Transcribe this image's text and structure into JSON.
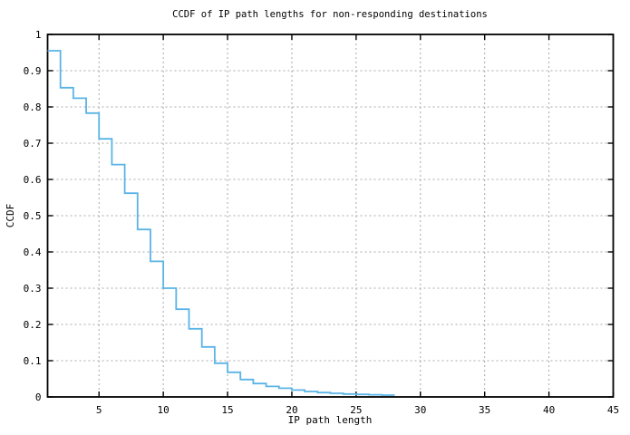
{
  "window": {
    "background": "#ffffff"
  },
  "colors": {
    "plot_border": "#000000",
    "grid": "#a8a8a8",
    "text": "#000000",
    "line": "#5AB4E6"
  },
  "chart_data": {
    "type": "line",
    "style": "step-post",
    "title": "CCDF of IP path lengths for non-responding destinations",
    "xlabel": "IP path length",
    "ylabel": "CCDF",
    "xlim": [
      1,
      45
    ],
    "ylim": [
      0,
      1
    ],
    "x_ticks": [
      5,
      10,
      15,
      20,
      25,
      30,
      35,
      40,
      45
    ],
    "x_tick_labels": [
      "5",
      "10",
      "15",
      "20",
      "25",
      "30",
      "35",
      "40",
      "45"
    ],
    "y_ticks": [
      0,
      0.1,
      0.2,
      0.3,
      0.4,
      0.5,
      0.6,
      0.7,
      0.8,
      0.9,
      1
    ],
    "y_tick_labels": [
      "0",
      "0.1",
      "0.2",
      "0.3",
      "0.4",
      "0.5",
      "0.6",
      "0.7",
      "0.8",
      "0.9",
      "1"
    ],
    "grid": "dashed",
    "legend": "none",
    "series": [
      {
        "name": "CCDF of IP path length",
        "color": "#5AB4E6",
        "x": [
          1,
          2,
          3,
          4,
          5,
          6,
          7,
          8,
          9,
          10,
          11,
          12,
          13,
          14,
          15,
          16,
          17,
          18,
          19,
          20,
          21,
          22,
          23,
          24,
          25,
          26,
          27
        ],
        "values": [
          0.955,
          0.853,
          0.824,
          0.783,
          0.712,
          0.641,
          0.562,
          0.462,
          0.374,
          0.3,
          0.242,
          0.188,
          0.138,
          0.093,
          0.068,
          0.048,
          0.037,
          0.029,
          0.024,
          0.019,
          0.015,
          0.012,
          0.01,
          0.008,
          0.007,
          0.006,
          0.005
        ],
        "end_x": 28
      }
    ]
  }
}
